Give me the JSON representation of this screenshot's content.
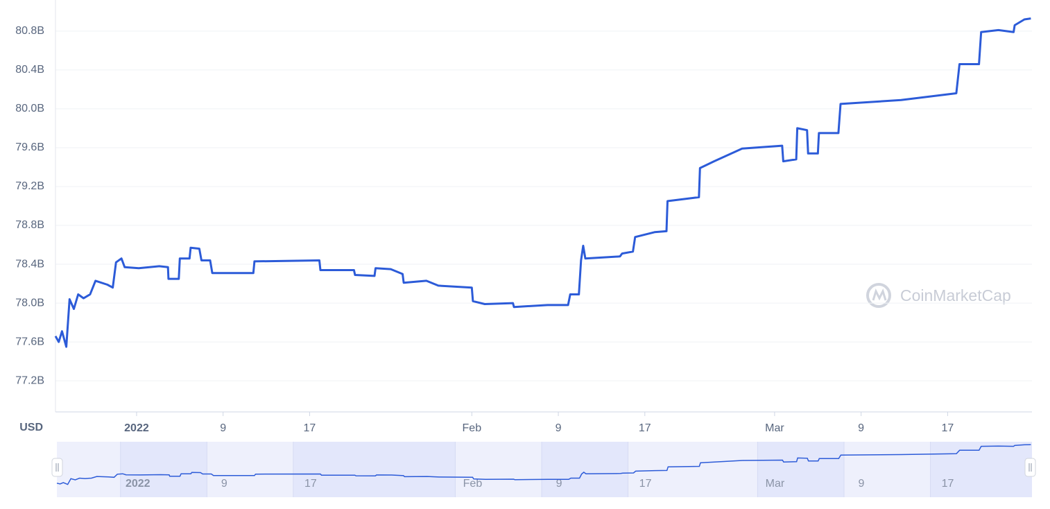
{
  "chart_data": {
    "type": "line",
    "unit_label": "USD",
    "watermark": "CoinMarketCap",
    "color": "#2c5bd8",
    "grid": true,
    "xlim": [
      -7.5,
      82.8
    ],
    "xticks": [
      {
        "value": 0,
        "label": "2022"
      },
      {
        "value": 8,
        "label": "9"
      },
      {
        "value": 16,
        "label": "17"
      },
      {
        "value": 31,
        "label": "Feb"
      },
      {
        "value": 39,
        "label": "9"
      },
      {
        "value": 47,
        "label": "17"
      },
      {
        "value": 59,
        "label": "Mar"
      },
      {
        "value": 67,
        "label": "9"
      },
      {
        "value": 75,
        "label": "17"
      }
    ],
    "ylim": [
      76.88,
      81.12
    ],
    "yticks": [
      {
        "value": 77.2,
        "label": "77.2B"
      },
      {
        "value": 77.6,
        "label": "77.6B"
      },
      {
        "value": 78.0,
        "label": "78.0B"
      },
      {
        "value": 78.4,
        "label": "78.4B"
      },
      {
        "value": 78.8,
        "label": "78.8B"
      },
      {
        "value": 79.2,
        "label": "79.2B"
      },
      {
        "value": 79.6,
        "label": "79.6B"
      },
      {
        "value": 80.0,
        "label": "80.0B"
      },
      {
        "value": 80.4,
        "label": "80.4B"
      },
      {
        "value": 80.8,
        "label": "80.8B"
      }
    ],
    "x": [
      -7.5,
      -7.2,
      -6.9,
      -6.5,
      -6.2,
      -5.8,
      -5.4,
      -4.9,
      -4.3,
      -3.8,
      -2.7,
      -2.2,
      -1.9,
      -1.4,
      -1.1,
      0.2,
      2.1,
      2.9,
      2.95,
      3.9,
      4.0,
      4.9,
      5.0,
      5.8,
      6.0,
      6.8,
      7.0,
      10.8,
      10.9,
      16.9,
      17.0,
      20.1,
      20.2,
      22.0,
      22.1,
      23.5,
      24.6,
      24.7,
      26.8,
      27.9,
      31.0,
      31.1,
      32.2,
      34.8,
      34.9,
      38.0,
      39.9,
      40.1,
      40.9,
      41.1,
      41.3,
      41.5,
      44.7,
      44.9,
      45.9,
      46.1,
      47.9,
      49.0,
      49.1,
      52.0,
      52.1,
      53.4,
      56.0,
      59.7,
      59.8,
      61.0,
      61.1,
      62.0,
      62.1,
      63.0,
      63.1,
      64.9,
      65.1,
      70.7,
      75.8,
      76.1,
      77.9,
      78.1,
      79.7,
      81.1,
      81.2,
      82.1,
      82.7
    ],
    "values": [
      77.66,
      77.6,
      77.71,
      77.55,
      78.04,
      77.94,
      78.09,
      78.05,
      78.09,
      78.23,
      78.19,
      78.16,
      78.42,
      78.46,
      78.37,
      78.36,
      78.38,
      78.37,
      78.25,
      78.25,
      78.46,
      78.46,
      78.57,
      78.56,
      78.44,
      78.44,
      78.31,
      78.31,
      78.43,
      78.44,
      78.34,
      78.34,
      78.29,
      78.28,
      78.36,
      78.35,
      78.3,
      78.21,
      78.23,
      78.18,
      78.16,
      78.02,
      77.99,
      78.0,
      77.96,
      77.98,
      77.98,
      78.09,
      78.09,
      78.44,
      78.59,
      78.46,
      78.48,
      78.51,
      78.53,
      78.68,
      78.73,
      78.74,
      79.05,
      79.09,
      79.39,
      79.46,
      79.59,
      79.62,
      79.46,
      79.48,
      79.8,
      79.78,
      79.54,
      79.54,
      79.75,
      79.75,
      80.05,
      80.09,
      80.16,
      80.46,
      80.46,
      80.79,
      80.81,
      80.79,
      80.86,
      80.92,
      80.93
    ]
  }
}
